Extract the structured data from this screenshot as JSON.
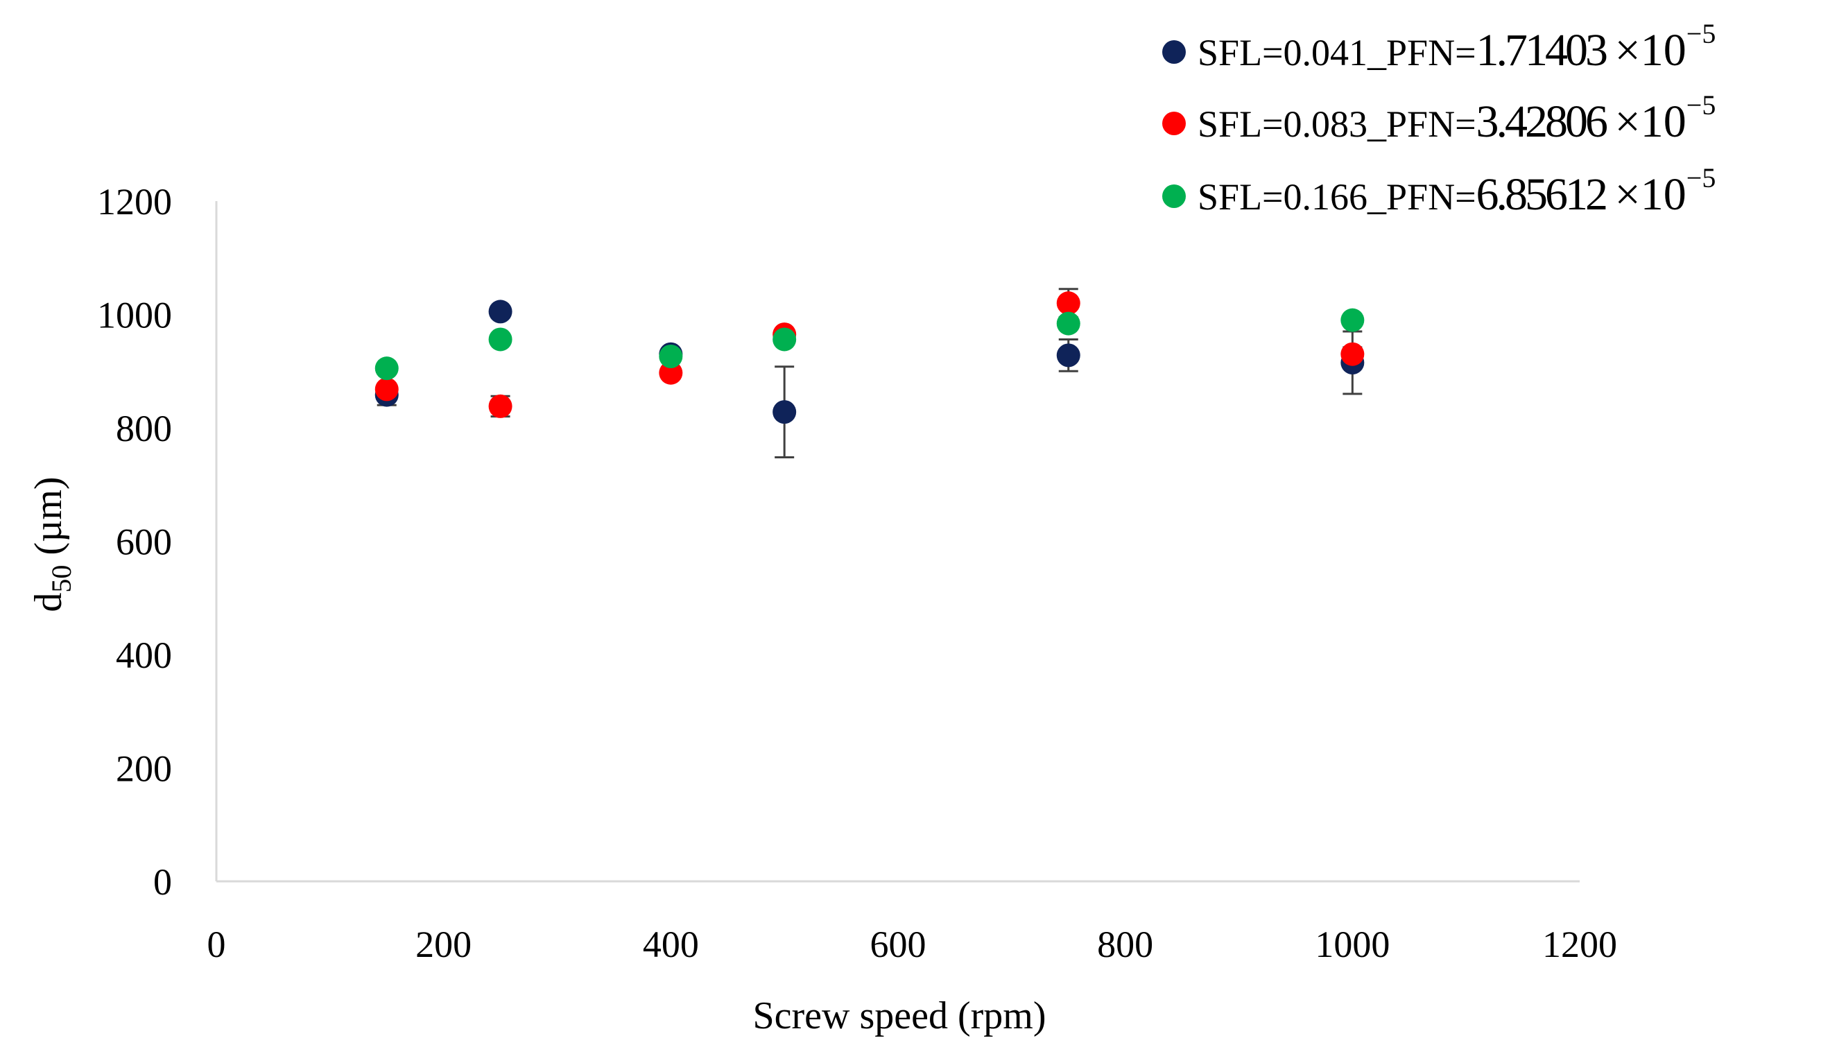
{
  "chart_data": {
    "type": "scatter",
    "title": "",
    "xlabel": "Screw speed (rpm)",
    "ylabel": "d",
    "ylabel_subscript": "50",
    "ylabel_unit": " (µm)",
    "xlim": [
      0,
      1200
    ],
    "ylim": [
      0,
      1200
    ],
    "xticks": [
      0,
      200,
      400,
      600,
      800,
      1000,
      1200
    ],
    "yticks": [
      0,
      200,
      400,
      600,
      800,
      1000,
      1200
    ],
    "grid": false,
    "legend_position": "top-right",
    "series": [
      {
        "name": "SFL=0.041_PFN=1.71403 ×10−5",
        "name_prefix": "SFL=0.041_PFN=",
        "name_mantissa": "1.71403",
        "name_times": "×10",
        "name_exponent": "−5",
        "color": "#0f2359",
        "x": [
          150,
          250,
          400,
          500,
          750,
          1000
        ],
        "y": [
          858,
          1005,
          930,
          828,
          928,
          915
        ],
        "err": [
          18,
          8,
          8,
          80,
          28,
          55
        ]
      },
      {
        "name": "SFL=0.083_PFN=3.42806 ×10−5",
        "name_prefix": "SFL=0.083_PFN=",
        "name_mantissa": "3.42806",
        "name_times": "×10",
        "name_exponent": "−5",
        "color": "#ff0000",
        "x": [
          150,
          250,
          400,
          500,
          750,
          1000
        ],
        "y": [
          868,
          838,
          897,
          965,
          1020,
          930
        ],
        "err": [
          10,
          18,
          10,
          8,
          25,
          12
        ]
      },
      {
        "name": "SFL=0.166_PFN=6.85612 ×10−5",
        "name_prefix": "SFL=0.166_PFN=",
        "name_mantissa": "6.85612",
        "name_times": "×10",
        "name_exponent": "−5",
        "color": "#00b050",
        "x": [
          150,
          250,
          400,
          500,
          750,
          1000
        ],
        "y": [
          905,
          956,
          926,
          956,
          984,
          990
        ],
        "err": [
          8,
          8,
          8,
          8,
          10,
          8
        ]
      }
    ]
  }
}
